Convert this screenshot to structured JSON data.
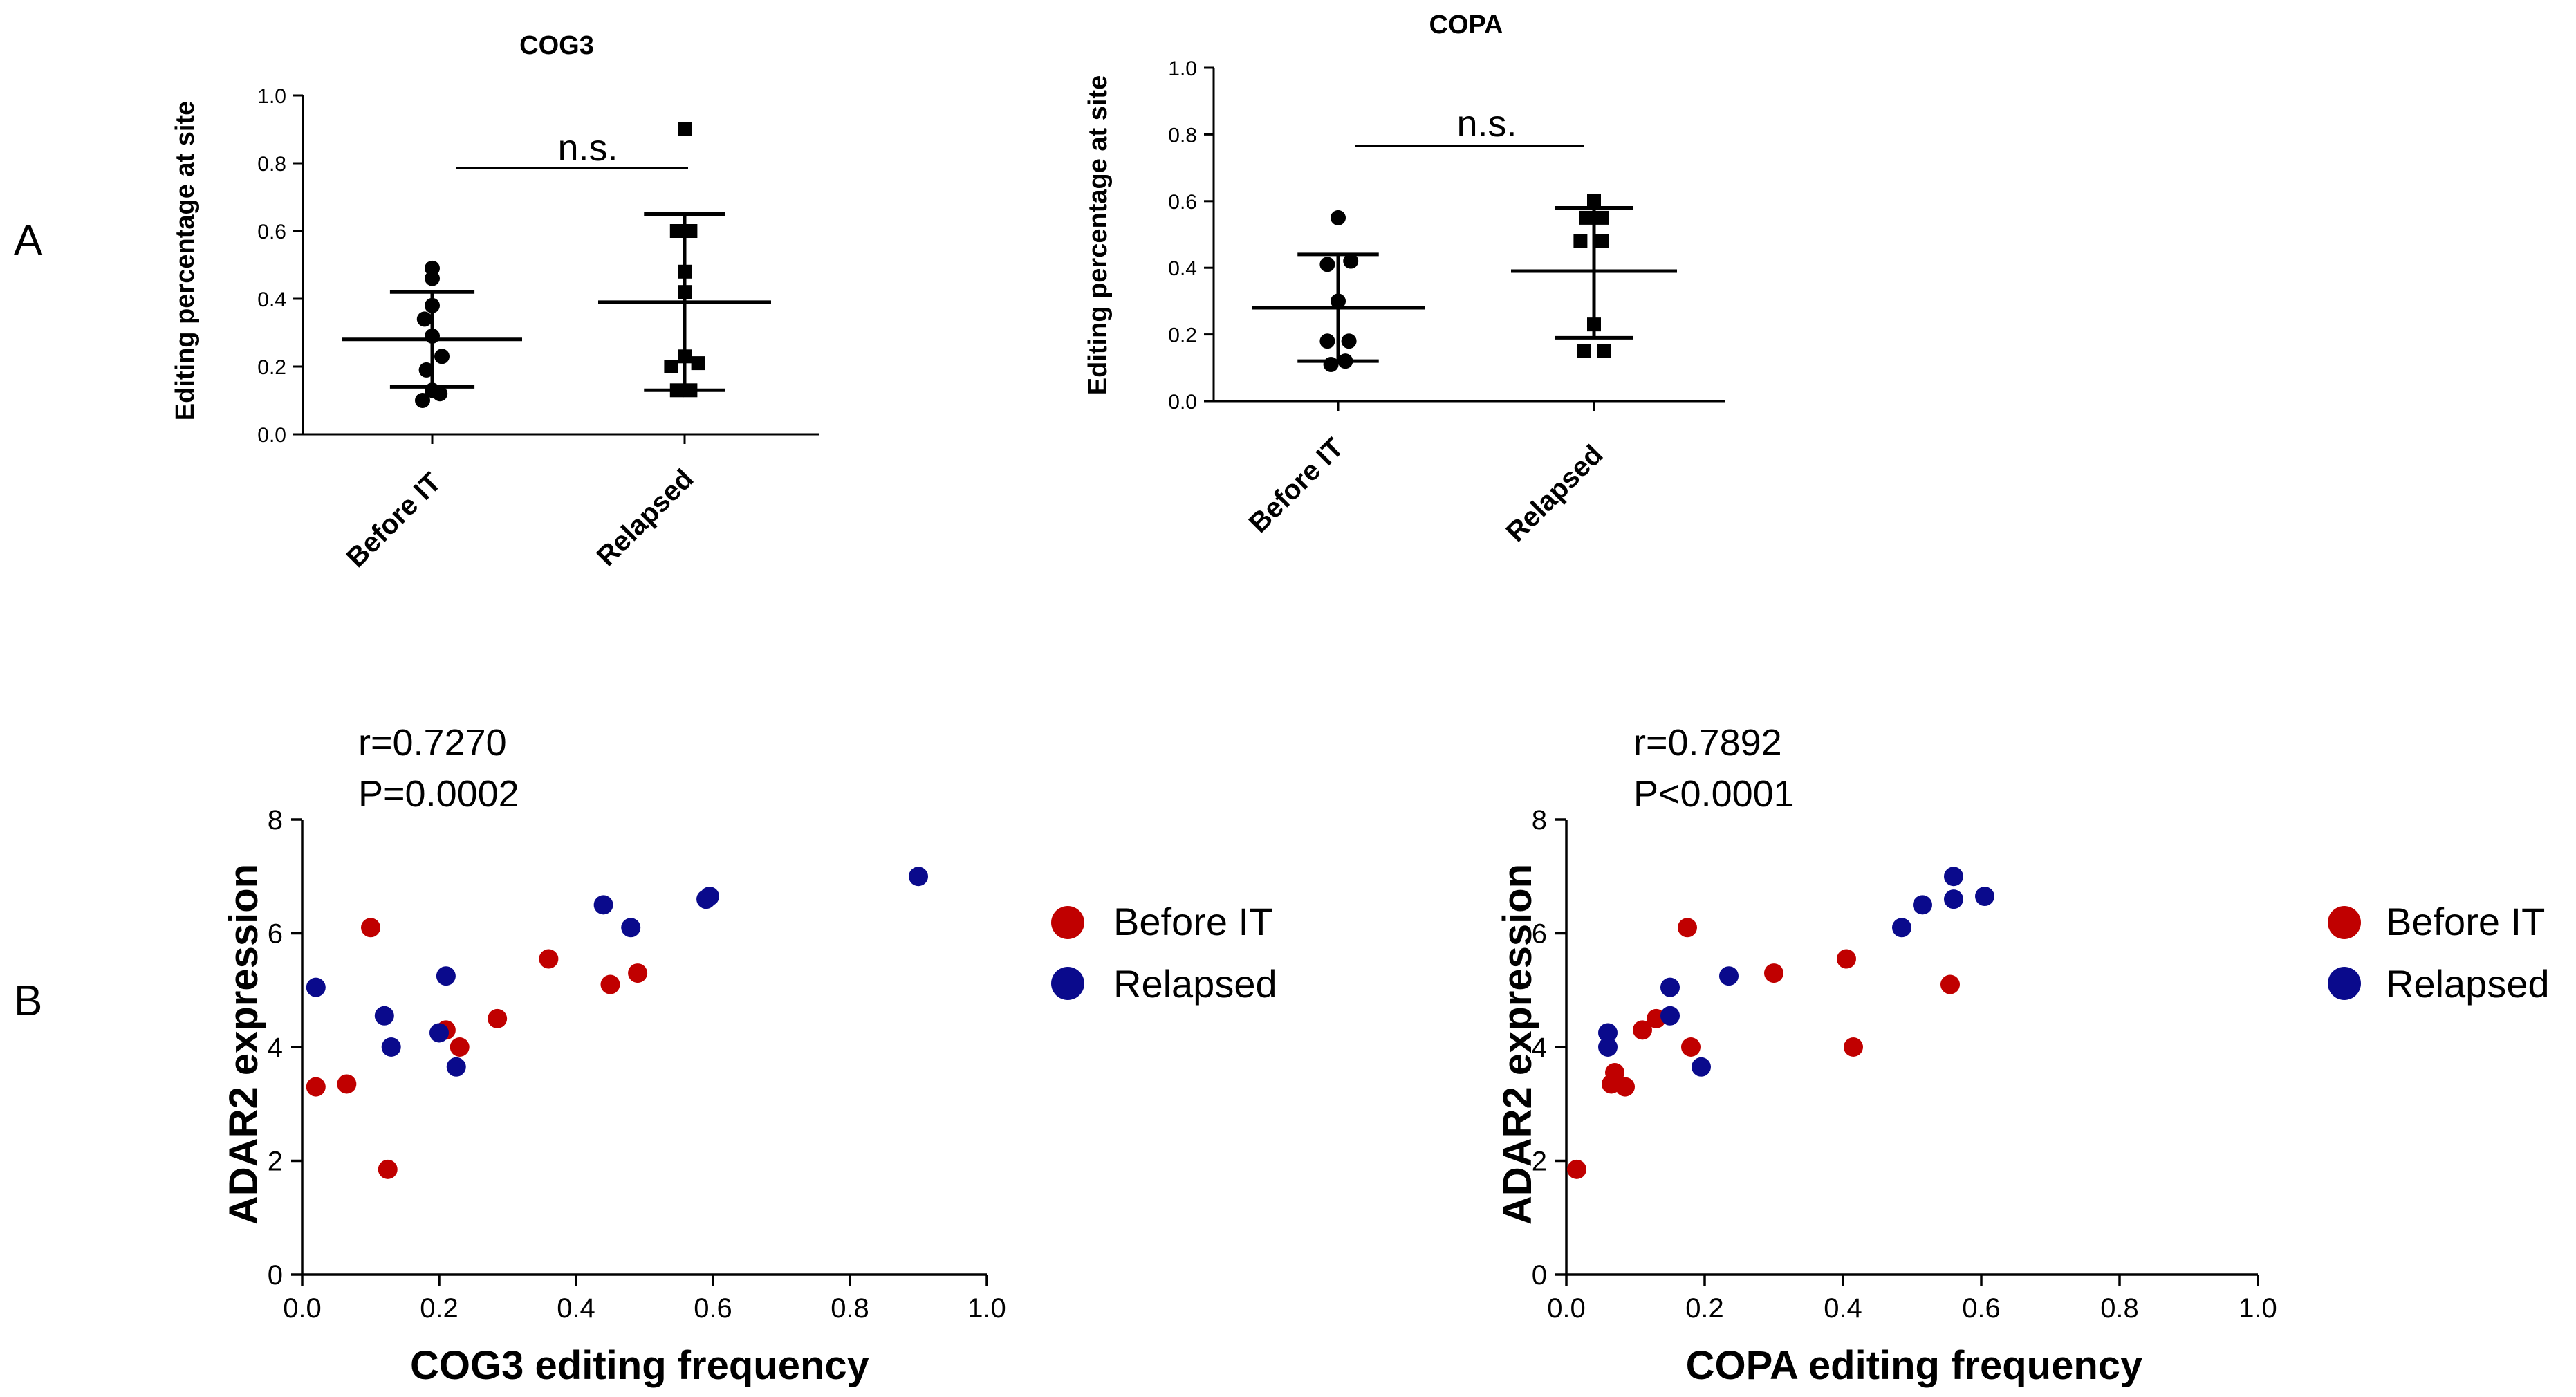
{
  "panels": {
    "a": "A",
    "b": "B"
  },
  "colors": {
    "before": "#c00000",
    "relapsed": "#0a0a8c",
    "axis": "#000000"
  },
  "chart_data": [
    {
      "type": "scatter",
      "subtype": "dot-plot-mean-sd",
      "title": "COG3",
      "ylabel": "Editing percentage at site",
      "categories": [
        "Before IT",
        "Relapsed"
      ],
      "ylim": [
        0,
        1.0
      ],
      "yticks": [
        "0.0",
        "0.2",
        "0.4",
        "0.6",
        "0.8",
        "1.0"
      ],
      "annotation": "n.s.",
      "groups": [
        {
          "name": "Before IT",
          "marker": "circle",
          "mean": 0.28,
          "sd_low": 0.14,
          "sd_high": 0.42,
          "points": [
            [
              0.5,
              0.49
            ],
            [
              0.5,
              0.46
            ],
            [
              0.5,
              0.38
            ],
            [
              0.42,
              0.34
            ],
            [
              0.5,
              0.29
            ],
            [
              0.6,
              0.23
            ],
            [
              0.44,
              0.19
            ],
            [
              0.5,
              0.13
            ],
            [
              0.4,
              0.1
            ],
            [
              0.58,
              0.12
            ]
          ]
        },
        {
          "name": "Relapsed",
          "marker": "square",
          "mean": 0.39,
          "sd_low": 0.13,
          "sd_high": 0.65,
          "points": [
            [
              0.5,
              0.9
            ],
            [
              0.42,
              0.6
            ],
            [
              0.56,
              0.6
            ],
            [
              0.5,
              0.48
            ],
            [
              0.5,
              0.42
            ],
            [
              0.5,
              0.23
            ],
            [
              0.36,
              0.2
            ],
            [
              0.64,
              0.21
            ],
            [
              0.42,
              0.13
            ],
            [
              0.56,
              0.13
            ]
          ]
        }
      ]
    },
    {
      "type": "scatter",
      "subtype": "dot-plot-mean-sd",
      "title": "COPA",
      "ylabel": "Editing percentage at site",
      "categories": [
        "Before IT",
        "Relapsed"
      ],
      "ylim": [
        0,
        1.0
      ],
      "yticks": [
        "0.0",
        "0.2",
        "0.4",
        "0.6",
        "0.8",
        "1.0"
      ],
      "annotation": "n.s.",
      "groups": [
        {
          "name": "Before IT",
          "marker": "circle",
          "mean": 0.28,
          "sd_low": 0.12,
          "sd_high": 0.44,
          "points": [
            [
              0.5,
              0.55
            ],
            [
              0.38,
              0.41
            ],
            [
              0.64,
              0.42
            ],
            [
              0.5,
              0.3
            ],
            [
              0.38,
              0.18
            ],
            [
              0.62,
              0.18
            ],
            [
              0.42,
              0.11
            ],
            [
              0.58,
              0.12
            ]
          ]
        },
        {
          "name": "Relapsed",
          "marker": "square",
          "mean": 0.39,
          "sd_low": 0.19,
          "sd_high": 0.58,
          "points": [
            [
              0.5,
              0.6
            ],
            [
              0.42,
              0.55
            ],
            [
              0.58,
              0.55
            ],
            [
              0.36,
              0.48
            ],
            [
              0.58,
              0.48
            ],
            [
              0.5,
              0.23
            ],
            [
              0.4,
              0.15
            ],
            [
              0.6,
              0.15
            ]
          ]
        }
      ]
    },
    {
      "type": "scatter",
      "xlabel": "COG3 editing frequency",
      "ylabel": "ADAR2 expression",
      "xlim": [
        0,
        1.0
      ],
      "ylim": [
        0,
        8
      ],
      "xticks": [
        "0.0",
        "0.2",
        "0.4",
        "0.6",
        "0.8",
        "1.0"
      ],
      "yticks": [
        "0",
        "2",
        "4",
        "6",
        "8"
      ],
      "stats": {
        "r": "r=0.7270",
        "p": "P=0.0002"
      },
      "series": [
        {
          "name": "Before IT",
          "points": [
            [
              0.02,
              3.3
            ],
            [
              0.065,
              3.35
            ],
            [
              0.1,
              6.1
            ],
            [
              0.125,
              1.85
            ],
            [
              0.21,
              4.3
            ],
            [
              0.23,
              4.0
            ],
            [
              0.285,
              4.5
            ],
            [
              0.36,
              5.55
            ],
            [
              0.45,
              5.1
            ],
            [
              0.49,
              5.3
            ]
          ]
        },
        {
          "name": "Relapsed",
          "points": [
            [
              0.02,
              5.05
            ],
            [
              0.12,
              4.55
            ],
            [
              0.13,
              4.0
            ],
            [
              0.2,
              4.25
            ],
            [
              0.21,
              5.25
            ],
            [
              0.225,
              3.65
            ],
            [
              0.44,
              6.5
            ],
            [
              0.48,
              6.1
            ],
            [
              0.59,
              6.6
            ],
            [
              0.595,
              6.65
            ],
            [
              0.9,
              7.0
            ]
          ]
        }
      ],
      "legend": [
        "Before IT",
        "Relapsed"
      ]
    },
    {
      "type": "scatter",
      "xlabel": "COPA editing frequency",
      "ylabel": "ADAR2 expression",
      "xlim": [
        0,
        1.0
      ],
      "ylim": [
        0,
        8
      ],
      "xticks": [
        "0.0",
        "0.2",
        "0.4",
        "0.6",
        "0.8",
        "1.0"
      ],
      "yticks": [
        "0",
        "2",
        "4",
        "6",
        "8"
      ],
      "stats": {
        "r": "r=0.7892",
        "p": "P<0.0001"
      },
      "series": [
        {
          "name": "Before IT",
          "points": [
            [
              0.015,
              1.85
            ],
            [
              0.065,
              3.35
            ],
            [
              0.07,
              3.55
            ],
            [
              0.085,
              3.3
            ],
            [
              0.11,
              4.3
            ],
            [
              0.13,
              4.5
            ],
            [
              0.175,
              6.1
            ],
            [
              0.18,
              4.0
            ],
            [
              0.3,
              5.3
            ],
            [
              0.405,
              5.55
            ],
            [
              0.415,
              4.0
            ],
            [
              0.555,
              5.1
            ]
          ]
        },
        {
          "name": "Relapsed",
          "points": [
            [
              0.06,
              4.0
            ],
            [
              0.06,
              4.25
            ],
            [
              0.15,
              5.05
            ],
            [
              0.15,
              4.55
            ],
            [
              0.195,
              3.65
            ],
            [
              0.235,
              5.25
            ],
            [
              0.485,
              6.1
            ],
            [
              0.515,
              6.5
            ],
            [
              0.56,
              7.0
            ],
            [
              0.56,
              6.6
            ],
            [
              0.605,
              6.65
            ]
          ]
        }
      ],
      "legend": [
        "Before IT",
        "Relapsed"
      ]
    }
  ]
}
